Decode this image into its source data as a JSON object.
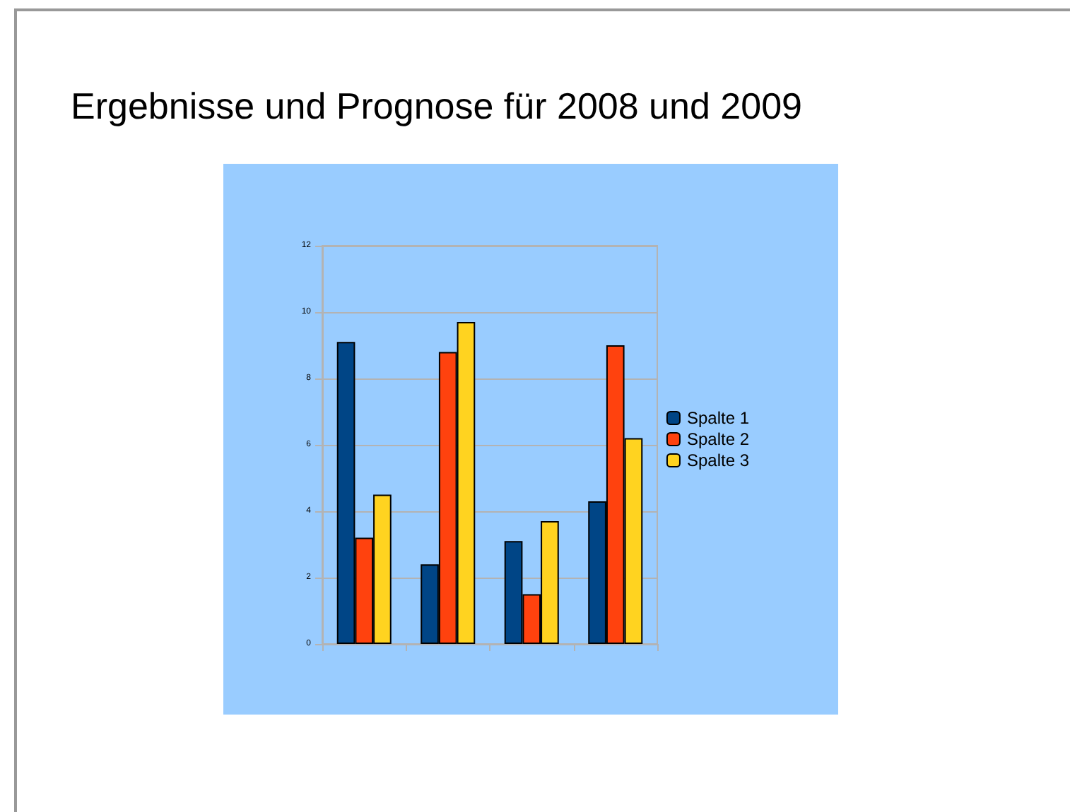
{
  "chart_data": {
    "type": "bar",
    "title": "Ergebnisse und Prognose für 2008 und 2009",
    "categories": [
      null,
      null,
      null,
      null
    ],
    "series": [
      {
        "name": "Spalte 1",
        "color": "#004586",
        "values": [
          9.1,
          2.4,
          3.1,
          4.3
        ]
      },
      {
        "name": "Spalte 2",
        "color": "#ff420e",
        "values": [
          3.2,
          8.8,
          1.5,
          9.0
        ]
      },
      {
        "name": "Spalte 3",
        "color": "#ffd320",
        "values": [
          4.5,
          9.7,
          3.7,
          6.2
        ]
      }
    ],
    "ylim": [
      0,
      12
    ],
    "yticks": [
      0,
      2,
      4,
      6,
      8,
      10,
      12
    ],
    "grid": "y",
    "legend": "right"
  }
}
